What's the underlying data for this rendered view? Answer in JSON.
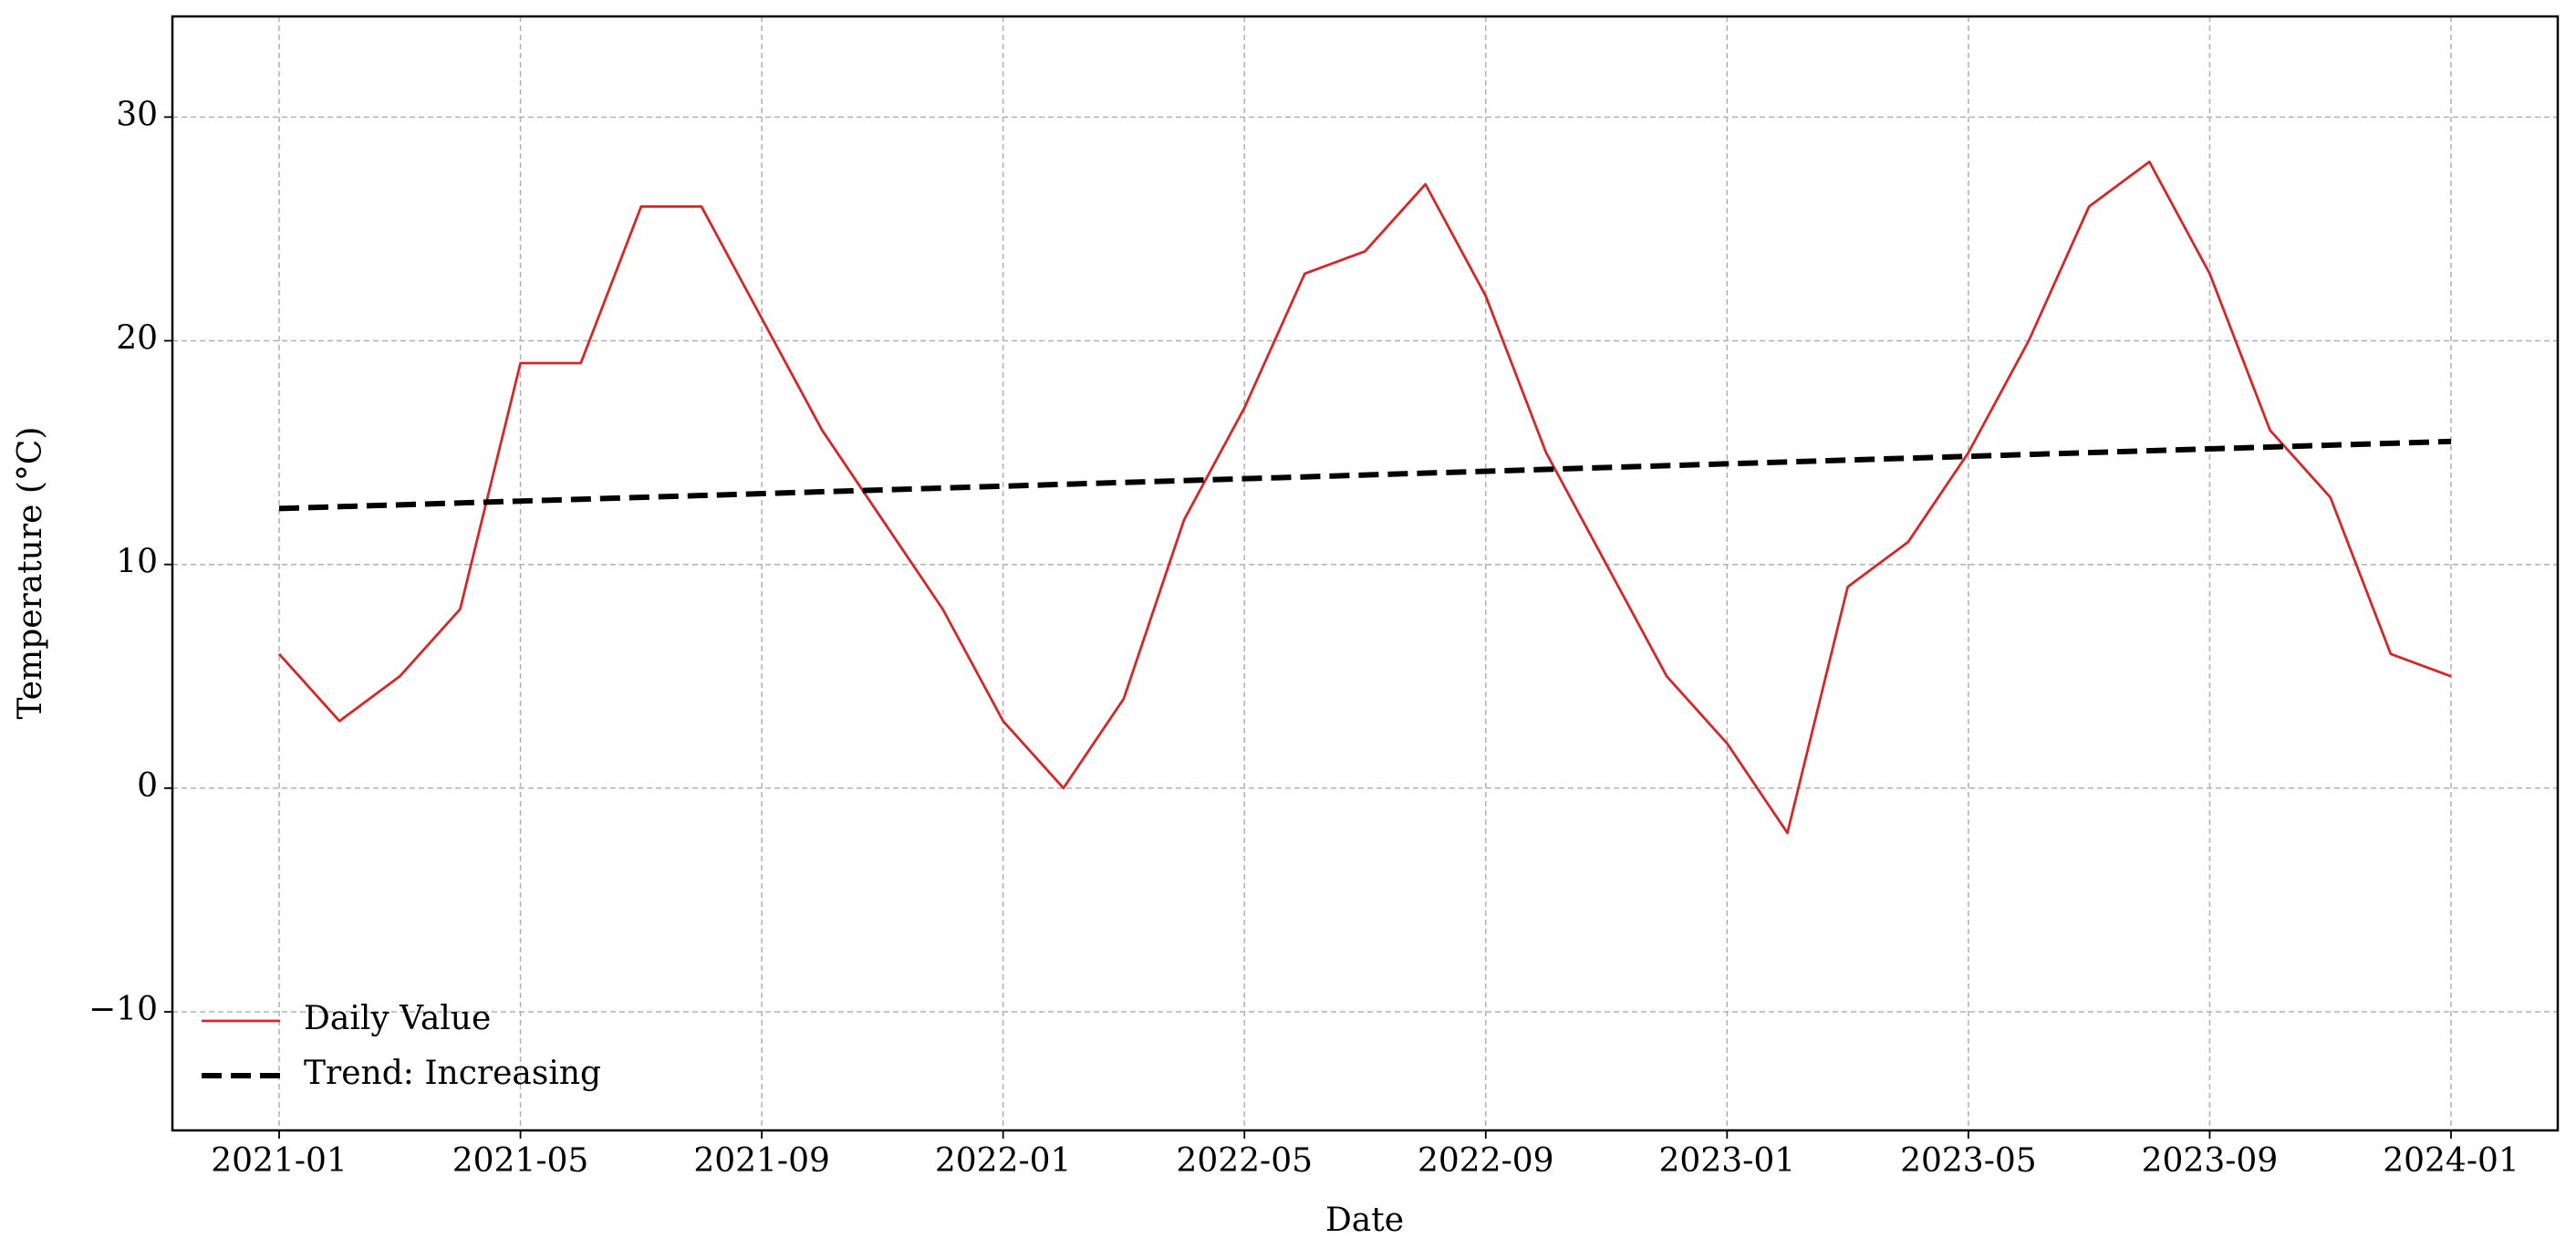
{
  "chart_data": {
    "type": "line",
    "xlabel": "Date",
    "ylabel": "Temperature (°C)",
    "series": [
      {
        "name": "Daily Value",
        "color": "#d62728",
        "style": "solid",
        "x": [
          "2021-01",
          "2021-02",
          "2021-03",
          "2021-04",
          "2021-05",
          "2021-06",
          "2021-07",
          "2021-08",
          "2021-09",
          "2021-10",
          "2021-11",
          "2021-12",
          "2022-01",
          "2022-02",
          "2022-03",
          "2022-04",
          "2022-05",
          "2022-06",
          "2022-07",
          "2022-08",
          "2022-09",
          "2022-10",
          "2022-11",
          "2022-12",
          "2023-01",
          "2023-02",
          "2023-03",
          "2023-04",
          "2023-05",
          "2023-06",
          "2023-07",
          "2023-08",
          "2023-09",
          "2023-10",
          "2023-11",
          "2023-12",
          "2024-01"
        ],
        "values": [
          6,
          3,
          5,
          8,
          19,
          19,
          26,
          26,
          21,
          16,
          12,
          8,
          3,
          0,
          4,
          12,
          17,
          23,
          24,
          27,
          22,
          15,
          10,
          5,
          2,
          -2,
          9,
          11,
          15,
          20,
          26,
          28,
          23,
          16,
          13,
          6,
          5
        ]
      },
      {
        "name": "Trend: Increasing",
        "color": "#000000",
        "style": "dashed",
        "x": [
          "2021-01",
          "2024-01"
        ],
        "values": [
          12.5,
          15.5
        ]
      }
    ],
    "xticks": [
      "2021-01",
      "2021-05",
      "2021-09",
      "2022-01",
      "2022-05",
      "2022-09",
      "2023-01",
      "2023-05",
      "2023-09",
      "2024-01"
    ],
    "ylim": [
      -15.3,
      34.5
    ],
    "yticks": [
      {
        "value": -10,
        "label": "−10"
      },
      0,
      10,
      20,
      30
    ],
    "grid": true,
    "legend": "lower left"
  }
}
